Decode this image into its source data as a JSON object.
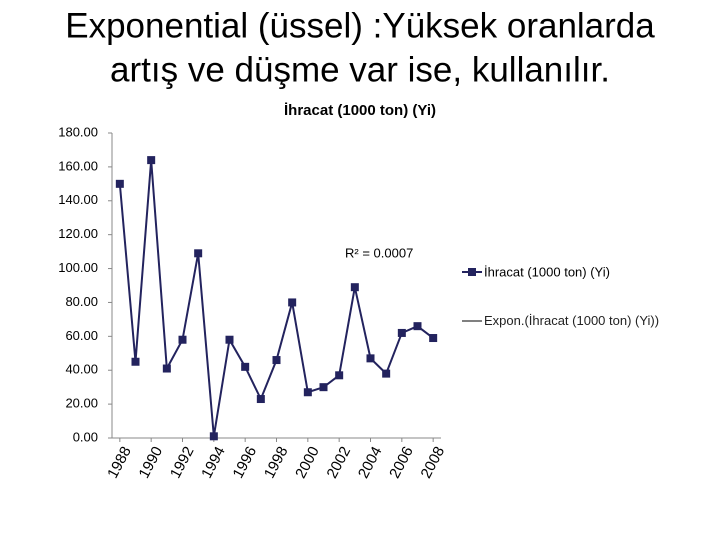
{
  "chart_data": {
    "type": "line",
    "title_lines": [
      "Exponential (üssel) :Yüksek oranlarda",
      "artış ve düşme var ise, kullanılır."
    ],
    "title": "İhracat (1000 ton) (Yi)",
    "x": [
      1988,
      1989,
      1990,
      1991,
      1992,
      1993,
      1994,
      1995,
      1996,
      1997,
      1998,
      1999,
      2000,
      2001,
      2002,
      2003,
      2004,
      2005,
      2006,
      2007,
      2008
    ],
    "xlim": [
      1987.5,
      2008.5
    ],
    "xticks": [
      1988,
      1990,
      1992,
      1994,
      1996,
      1998,
      2000,
      2002,
      2004,
      2006,
      2008
    ],
    "ylim": [
      0,
      180
    ],
    "yticks": [
      {
        "value": 0,
        "label": "0.00"
      },
      {
        "value": 20,
        "label": "20.00"
      },
      {
        "value": 40,
        "label": "40.00"
      },
      {
        "value": 60,
        "label": "60.00"
      },
      {
        "value": 80,
        "label": "80.00"
      },
      {
        "value": 100,
        "label": "100.00"
      },
      {
        "value": 120,
        "label": "120.00"
      },
      {
        "value": 140,
        "label": "140.00"
      },
      {
        "value": 160,
        "label": "160.00"
      },
      {
        "value": 180,
        "label": "180.00"
      }
    ],
    "grid": false,
    "series": [
      {
        "name": "İhracat (1000 ton) (Yi)",
        "color": "#23235e",
        "values": [
          150,
          45,
          164,
          41,
          58,
          109,
          1,
          58,
          42,
          23,
          46,
          80,
          27,
          30,
          37,
          89,
          47,
          38,
          62,
          66,
          59
        ]
      }
    ],
    "trendline": {
      "name": "Expon.(İhracat (1000 ton) (Yi))",
      "color": "#000000",
      "annotation": "R² = 0.0007"
    },
    "legend": "right"
  }
}
